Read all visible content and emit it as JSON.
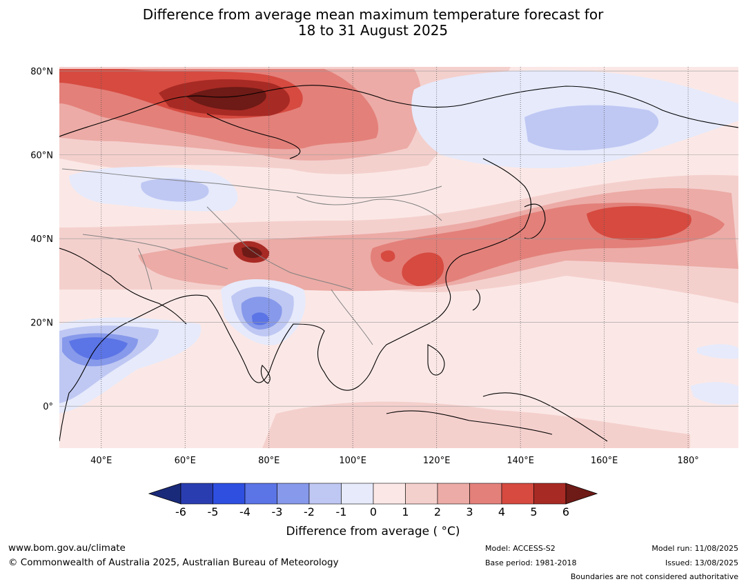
{
  "title_line1": "Difference from average mean maximum temperature forecast for",
  "title_line2": "18 to 31 August 2025",
  "map": {
    "lon_range": [
      30,
      192
    ],
    "lat_range": [
      -10,
      81
    ],
    "lat_ticks": [
      {
        "value": 80,
        "label": "80°N"
      },
      {
        "value": 60,
        "label": "60°N"
      },
      {
        "value": 40,
        "label": "40°N"
      },
      {
        "value": 20,
        "label": "20°N"
      },
      {
        "value": 0,
        "label": "0°"
      }
    ],
    "lon_ticks": [
      {
        "value": 40,
        "label": "40°E"
      },
      {
        "value": 60,
        "label": "60°E"
      },
      {
        "value": 80,
        "label": "80°E"
      },
      {
        "value": 100,
        "label": "100°E"
      },
      {
        "value": 120,
        "label": "120°E"
      },
      {
        "value": 140,
        "label": "140°E"
      },
      {
        "value": 160,
        "label": "160°E"
      },
      {
        "value": 180,
        "label": "180°"
      }
    ]
  },
  "colorbar": {
    "title": "Difference from average ( °C)",
    "levels": [
      "-6",
      "-5",
      "-4",
      "-3",
      "-2",
      "-1",
      "0",
      "1",
      "2",
      "3",
      "4",
      "5",
      "6"
    ],
    "colors": [
      "#1a2a7a",
      "#2a3db0",
      "#2f4fe0",
      "#5b74e6",
      "#8799ea",
      "#bfc8f3",
      "#e6eafb",
      "#fbe8e6",
      "#f4d0cd",
      "#ecaba6",
      "#e3807a",
      "#d64a40",
      "#a82a24",
      "#6e1a16"
    ]
  },
  "footer": {
    "url": "www.bom.gov.au/climate",
    "copyright": "© Commonwealth of Australia 2025, Australian Bureau of Meteorology",
    "model": "Model: ACCESS-S2",
    "base_period": "Base period: 1981-2018",
    "model_run": "Model run: 11/08/2025",
    "issued": "Issued: 13/08/2025",
    "disclaimer": "Boundaries are not considered authoritative"
  }
}
